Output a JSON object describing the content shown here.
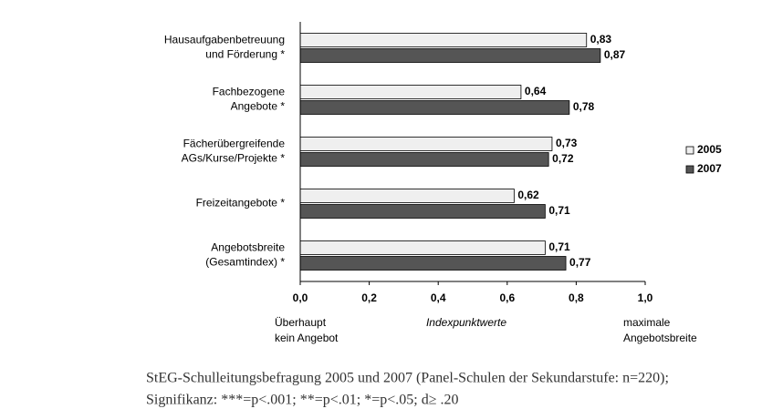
{
  "chart_data": {
    "type": "hbar",
    "categories": [
      [
        "Hausaufgabenbetreuung",
        "und Förderung *"
      ],
      [
        "Fachbezogene",
        "Angebote *"
      ],
      [
        "Fächerübergreifende",
        "AGs/Kurse/Projekte *"
      ],
      [
        "Freizeitangebote *"
      ],
      [
        "Angebotsbreite",
        "(Gesamtindex) *"
      ]
    ],
    "series": [
      {
        "name": "2005",
        "color": "#efefef",
        "values": [
          0.83,
          0.64,
          0.73,
          0.62,
          0.71
        ],
        "value_labels": [
          "0,83",
          "0,64",
          "0,73",
          "0,62",
          "0,71"
        ]
      },
      {
        "name": "2007",
        "color": "#555555",
        "values": [
          0.87,
          0.78,
          0.72,
          0.71,
          0.77
        ],
        "value_labels": [
          "0,87",
          "0,78",
          "0,72",
          "0,71",
          "0,77"
        ]
      }
    ],
    "xlim": [
      0,
      1
    ],
    "xticks": [
      {
        "value": 0,
        "label": "0,0"
      },
      {
        "value": 0.2,
        "label": "0,2"
      },
      {
        "value": 0.4,
        "label": "0,4"
      },
      {
        "value": 0.6,
        "label": "0,6"
      },
      {
        "value": 0.8,
        "label": "0,8"
      },
      {
        "value": 1,
        "label": "1,0"
      }
    ],
    "xlabel": "Indexpunktwerte",
    "xlabel_left": [
      "Überhaupt",
      "kein Angebot"
    ],
    "xlabel_right": [
      "maximale",
      "Angebotsbreite"
    ],
    "legend": "right"
  },
  "caption": [
    "StEG-Schulleitungsbefragung 2005 und 2007 (Panel-Schulen der Sekundarstufe: n=220);",
    "Signifikanz: ***=p<.001; **=p<.01; *=p<.05; d≥ .20"
  ]
}
